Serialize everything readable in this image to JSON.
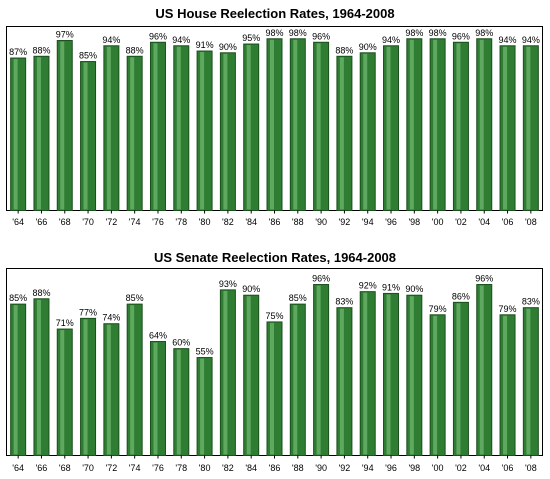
{
  "chart_data": [
    {
      "type": "bar",
      "title": "US House Reelection Rates, 1964-2008",
      "categories": [
        "'64",
        "'66",
        "'68",
        "'70",
        "'72",
        "'74",
        "'76",
        "'78",
        "'80",
        "'82",
        "'84",
        "'86",
        "'88",
        "'90",
        "'92",
        "'94",
        "'96",
        "'98",
        "'00",
        "'02",
        "'04",
        "'06",
        "'08"
      ],
      "values": [
        87,
        88,
        97,
        85,
        94,
        88,
        96,
        94,
        91,
        90,
        95,
        98,
        98,
        96,
        88,
        90,
        94,
        98,
        98,
        96,
        98,
        94,
        94
      ],
      "value_labels": [
        "87%",
        "88%",
        "97%",
        "85%",
        "94%",
        "88%",
        "96%",
        "94%",
        "91%",
        "90%",
        "95%",
        "98%",
        "98%",
        "96%",
        "88%",
        "90%",
        "94%",
        "98%",
        "98%",
        "96%",
        "98%",
        "94%",
        "94%"
      ],
      "ylim": [
        0,
        105
      ],
      "grid": false,
      "colors": {
        "bar": "#2e7d32",
        "bar_dark": "#1b4f1d",
        "bar_light": "#5fa85f",
        "frame": "#000000"
      }
    },
    {
      "type": "bar",
      "title": "US Senate Reelection Rates, 1964-2008",
      "categories": [
        "'64",
        "'66",
        "'68",
        "'70",
        "'72",
        "'74",
        "'76",
        "'78",
        "'80",
        "'82",
        "'84",
        "'86",
        "'88",
        "'90",
        "'92",
        "'94",
        "'96",
        "'98",
        "'00",
        "'02",
        "'04",
        "'06",
        "'08"
      ],
      "values": [
        85,
        88,
        71,
        77,
        74,
        85,
        64,
        60,
        55,
        93,
        90,
        75,
        85,
        96,
        83,
        92,
        91,
        90,
        79,
        86,
        96,
        79,
        83
      ],
      "value_labels": [
        "85%",
        "88%",
        "71%",
        "77%",
        "74%",
        "85%",
        "64%",
        "60%",
        "55%",
        "93%",
        "90%",
        "75%",
        "85%",
        "96%",
        "83%",
        "92%",
        "91%",
        "90%",
        "79%",
        "86%",
        "96%",
        "79%",
        "83%"
      ],
      "ylim": [
        0,
        105
      ],
      "grid": false,
      "colors": {
        "bar": "#2e7d32",
        "bar_dark": "#1b4f1d",
        "bar_light": "#5fa85f",
        "frame": "#000000"
      }
    }
  ]
}
